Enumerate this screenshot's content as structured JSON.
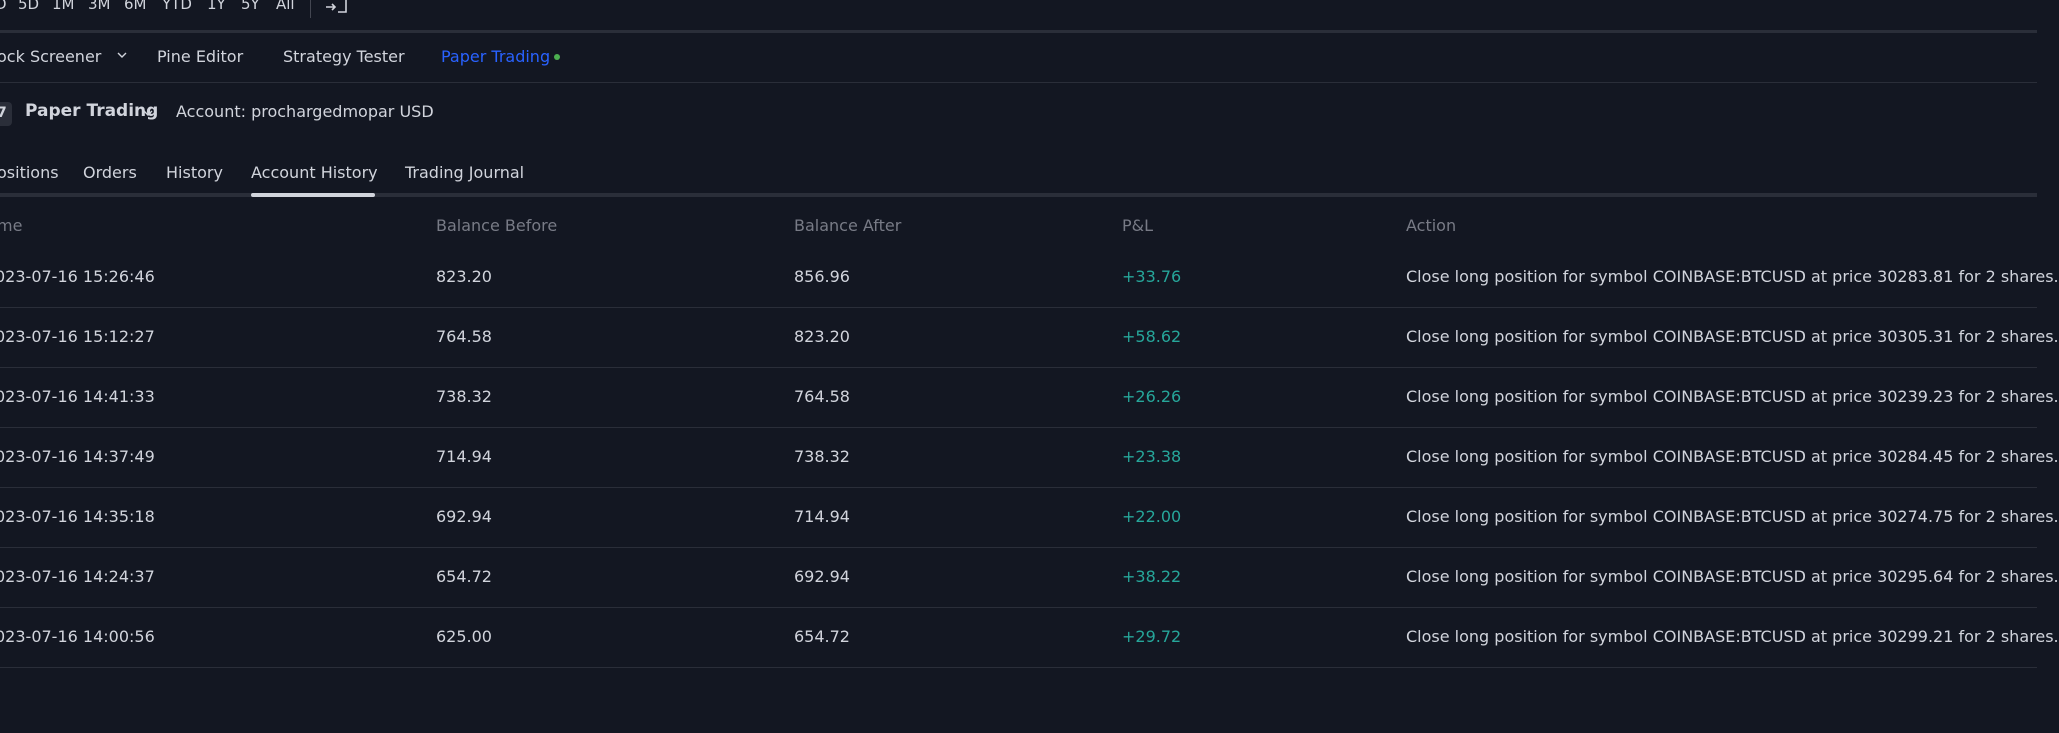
{
  "range_bar": {
    "buttons": [
      "D",
      "5D",
      "1M",
      "3M",
      "6M",
      "YTD",
      "1Y",
      "5Y",
      "All"
    ]
  },
  "widget_tabs": {
    "stock_screener": "ock Screener",
    "pine_editor": "Pine Editor",
    "strategy_tester": "Strategy Tester",
    "paper_trading": "Paper Trading"
  },
  "panel": {
    "broker": "Paper Trading",
    "account": "Account: prochargedmopar USD"
  },
  "content_tabs": [
    "ositions",
    "Orders",
    "History",
    "Account History",
    "Trading Journal"
  ],
  "table": {
    "headers": {
      "time": "me",
      "balance_before": "Balance Before",
      "balance_after": "Balance After",
      "pnl": "P&L",
      "action": "Action"
    },
    "rows": [
      {
        "time": "023-07-16 15:26:46",
        "before": "823.20",
        "after": "856.96",
        "pnl": "+33.76",
        "action": "Close long position for symbol COINBASE:BTCUSD at price 30283.81 for 2 shares."
      },
      {
        "time": "023-07-16 15:12:27",
        "before": "764.58",
        "after": "823.20",
        "pnl": "+58.62",
        "action": "Close long position for symbol COINBASE:BTCUSD at price 30305.31 for 2 shares."
      },
      {
        "time": "023-07-16 14:41:33",
        "before": "738.32",
        "after": "764.58",
        "pnl": "+26.26",
        "action": "Close long position for symbol COINBASE:BTCUSD at price 30239.23 for 2 shares."
      },
      {
        "time": "023-07-16 14:37:49",
        "before": "714.94",
        "after": "738.32",
        "pnl": "+23.38",
        "action": "Close long position for symbol COINBASE:BTCUSD at price 30284.45 for 2 shares."
      },
      {
        "time": "023-07-16 14:35:18",
        "before": "692.94",
        "after": "714.94",
        "pnl": "+22.00",
        "action": "Close long position for symbol COINBASE:BTCUSD at price 30274.75 for 2 shares."
      },
      {
        "time": "023-07-16 14:24:37",
        "before": "654.72",
        "after": "692.94",
        "pnl": "+38.22",
        "action": "Close long position for symbol COINBASE:BTCUSD at price 30295.64 for 2 shares."
      },
      {
        "time": "023-07-16 14:00:56",
        "before": "625.00",
        "after": "654.72",
        "pnl": "+29.72",
        "action": "Close long position for symbol COINBASE:BTCUSD at price 30299.21 for 2 shares."
      }
    ]
  },
  "colors": {
    "background": "#131722",
    "accent": "#2962ff",
    "positive": "#26a69a",
    "live_dot": "#4caf50"
  }
}
